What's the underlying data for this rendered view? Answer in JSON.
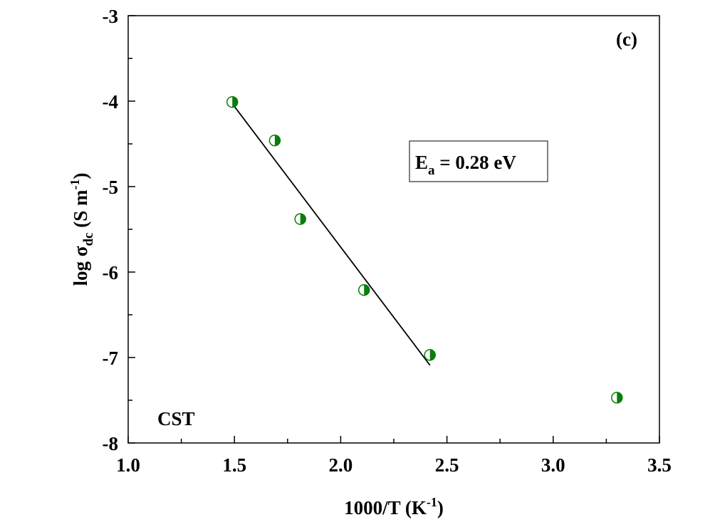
{
  "chart_data": {
    "type": "scatter",
    "xlim": [
      1.0,
      3.5
    ],
    "ylim": [
      -8,
      -3
    ],
    "xticks": [
      1.0,
      1.5,
      2.0,
      2.5,
      3.0,
      3.5
    ],
    "yticks": [
      -8,
      -7,
      -6,
      -5,
      -4,
      -3
    ],
    "xtick_labels": [
      "1.0",
      "1.5",
      "2.0",
      "2.5",
      "3.0",
      "3.5"
    ],
    "ytick_labels": [
      "-8",
      "-7",
      "-6",
      "-5",
      "-4",
      "-3"
    ],
    "xlabel": {
      "main": "1000/T (K",
      "sup": "-1",
      "tail": ")"
    },
    "ylabel": {
      "pre": "log σ",
      "sub": "dc",
      "mid": " (S m",
      "sup": "-1",
      "tail": ")"
    },
    "grid": false,
    "marker_color": "#0a7d0a",
    "line_color": "#000000",
    "series": [
      {
        "points": [
          {
            "x": 1.49,
            "y": -4.01
          },
          {
            "x": 1.69,
            "y": -4.46
          },
          {
            "x": 1.81,
            "y": -5.38
          },
          {
            "x": 2.11,
            "y": -6.21
          },
          {
            "x": 2.42,
            "y": -6.97
          },
          {
            "x": 3.3,
            "y": -7.47
          }
        ]
      }
    ],
    "fit_line": {
      "x1": 1.49,
      "y1": -4.03,
      "x2": 2.42,
      "y2": -7.09
    },
    "annotations": {
      "panel": "(c)",
      "sample": "CST",
      "ea_main": "E",
      "ea_sub": "a",
      "ea_value": " = 0.28 eV"
    }
  }
}
